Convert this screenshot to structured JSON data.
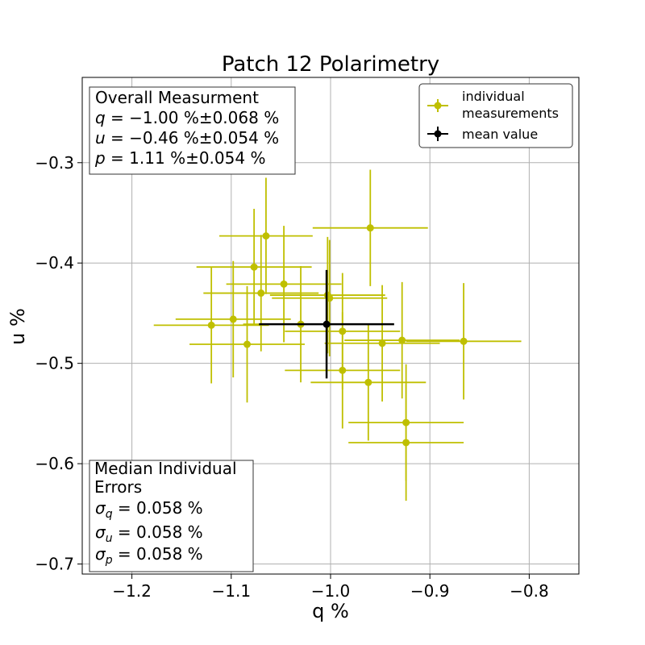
{
  "chart_data": {
    "type": "scatter",
    "title": "Patch 12 Polarimetry",
    "xlabel": "q %",
    "ylabel": "u %",
    "xlim": [
      -1.25,
      -0.75
    ],
    "ylim": [
      -0.71,
      -0.215
    ],
    "xticks": [
      -1.2,
      -1.1,
      -1.0,
      -0.9,
      -0.8
    ],
    "xtick_labels": [
      "−1.2",
      "−1.1",
      "−1.0",
      "−0.9",
      "−0.8"
    ],
    "yticks": [
      -0.3,
      -0.4,
      -0.5,
      -0.6,
      -0.7
    ],
    "ytick_labels": [
      "−0.3",
      "−0.4",
      "−0.5",
      "−0.6",
      "−0.7"
    ],
    "grid": true,
    "legend": {
      "position": "top-right",
      "entries": [
        {
          "label_line1": "individual",
          "label_line2": " measurements",
          "color": "#bfbf00"
        },
        {
          "label_line1": "mean value",
          "color": "#000000"
        }
      ]
    },
    "series": [
      {
        "name": "individual measurements",
        "color": "#bfbf00",
        "points": [
          {
            "q": -1.065,
            "u": -0.373,
            "qerr": 0.047,
            "uerr": 0.058
          },
          {
            "q": -0.96,
            "u": -0.365,
            "qerr": 0.058,
            "uerr": 0.058
          },
          {
            "q": -1.077,
            "u": -0.404,
            "qerr": 0.058,
            "uerr": 0.058
          },
          {
            "q": -1.047,
            "u": -0.421,
            "qerr": 0.058,
            "uerr": 0.058
          },
          {
            "q": -1.07,
            "u": -0.43,
            "qerr": 0.058,
            "uerr": 0.058
          },
          {
            "q": -1.003,
            "u": -0.432,
            "qerr": 0.058,
            "uerr": 0.058
          },
          {
            "q": -1.001,
            "u": -0.435,
            "qerr": 0.058,
            "uerr": 0.058
          },
          {
            "q": -1.098,
            "u": -0.456,
            "qerr": 0.058,
            "uerr": 0.058
          },
          {
            "q": -1.12,
            "u": -0.462,
            "qerr": 0.058,
            "uerr": 0.058
          },
          {
            "q": -1.03,
            "u": -0.461,
            "qerr": 0.058,
            "uerr": 0.058
          },
          {
            "q": -0.988,
            "u": -0.468,
            "qerr": 0.058,
            "uerr": 0.058
          },
          {
            "q": -1.084,
            "u": -0.481,
            "qerr": 0.058,
            "uerr": 0.058
          },
          {
            "q": -0.948,
            "u": -0.48,
            "qerr": 0.058,
            "uerr": 0.058
          },
          {
            "q": -0.928,
            "u": -0.477,
            "qerr": 0.058,
            "uerr": 0.058
          },
          {
            "q": -0.866,
            "u": -0.478,
            "qerr": 0.058,
            "uerr": 0.058
          },
          {
            "q": -0.988,
            "u": -0.507,
            "qerr": 0.058,
            "uerr": 0.058
          },
          {
            "q": -0.962,
            "u": -0.519,
            "qerr": 0.058,
            "uerr": 0.058
          },
          {
            "q": -0.924,
            "u": -0.559,
            "qerr": 0.058,
            "uerr": 0.058
          },
          {
            "q": -0.924,
            "u": -0.579,
            "qerr": 0.058,
            "uerr": 0.058
          }
        ]
      },
      {
        "name": "mean value",
        "color": "#000000",
        "points": [
          {
            "q": -1.004,
            "u": -0.461,
            "qerr": 0.068,
            "uerr": 0.054
          }
        ]
      }
    ],
    "annotations": {
      "overall": {
        "heading": "Overall Measurment",
        "q_var": "q",
        "q_text": " = −1.00 %±0.068 %",
        "u_var": "u",
        "u_text": " = −0.46 %±0.054 %",
        "p_var": "p",
        "p_text": " = 1.11 %±0.054 %"
      },
      "median": {
        "heading_line1": "Median Individual",
        "heading_line2": " Errors",
        "sigma": "σ",
        "sq_sub": "q",
        "sq_text": " = 0.058 %",
        "su_sub": "u",
        "su_text": " = 0.058 %",
        "sp_sub": "p",
        "sp_text": " = 0.058 %"
      }
    }
  }
}
